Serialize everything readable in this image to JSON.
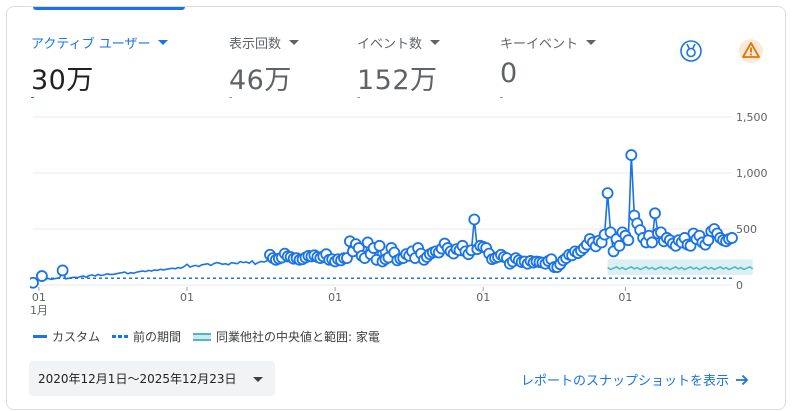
{
  "metrics": [
    {
      "label": "アクティブ ユーザー",
      "value": "30万",
      "active": true
    },
    {
      "label": "表示回数",
      "value": "46万",
      "active": false
    },
    {
      "label": "イベント数",
      "value": "152万",
      "active": false
    },
    {
      "label": "キーイベント",
      "value": "0",
      "active": false
    }
  ],
  "icons": {
    "insights": "insights-badge-icon",
    "warning": "warning-triangle-icon"
  },
  "colors": {
    "accent": "#1a73e8",
    "band": "#cde8ee",
    "median": "#4db6c4",
    "warning": "#e37400"
  },
  "chart_data": {
    "type": "line",
    "ylim": [
      0,
      1500
    ],
    "yticks": [
      0,
      500,
      1000,
      1500
    ],
    "ytick_labels": [
      "0",
      "500",
      "1,000",
      "1,500"
    ],
    "xtick_labels": [
      [
        "01",
        "1月"
      ],
      [
        "01"
      ],
      [
        "01"
      ],
      [
        "01"
      ],
      [
        "01"
      ]
    ],
    "xtick_index": [
      2,
      52,
      102,
      152,
      200
    ],
    "series": [
      {
        "name": "カスタム",
        "style": "solid",
        "values": [
          20,
          55,
          60,
          80,
          45,
          60,
          50,
          55,
          60,
          65,
          130,
          55,
          60,
          65,
          70,
          65,
          75,
          80,
          70,
          85,
          90,
          80,
          95,
          85,
          90,
          100,
          95,
          95,
          100,
          105,
          110,
          115,
          100,
          110,
          105,
          115,
          120,
          125,
          120,
          130,
          125,
          135,
          130,
          140,
          135,
          140,
          145,
          150,
          145,
          155,
          150,
          165,
          185,
          160,
          170,
          175,
          165,
          180,
          185,
          190,
          175,
          190,
          200,
          195,
          185,
          190,
          180,
          200,
          195,
          190,
          210,
          200,
          205,
          195,
          215,
          185,
          200,
          210,
          205,
          215,
          270,
          240,
          225,
          235,
          245,
          280,
          255,
          250,
          235,
          240,
          225,
          230,
          245,
          260,
          255,
          265,
          250,
          240,
          255,
          275,
          225,
          230,
          210,
          230,
          220,
          240,
          240,
          390,
          300,
          365,
          330,
          260,
          240,
          380,
          275,
          330,
          225,
          350,
          210,
          230,
          245,
          330,
          290,
          220,
          235,
          240,
          275,
          260,
          300,
          240,
          330,
          280,
          225,
          250,
          275,
          290,
          300,
          290,
          325,
          370,
          330,
          300,
          280,
          320,
          310,
          350,
          300,
          275,
          310,
          585,
          320,
          350,
          340,
          330,
          280,
          230,
          240,
          250,
          270,
          250,
          240,
          190,
          210,
          240,
          220,
          205,
          210,
          190,
          215,
          200,
          210,
          205,
          200,
          190,
          215,
          230,
          160,
          160,
          185,
          220,
          240,
          270,
          265,
          300,
          285,
          305,
          330,
          360,
          410,
          380,
          345,
          395,
          380,
          450,
          820,
          470,
          300,
          410,
          350,
          470,
          440,
          400,
          1160,
          620,
          550,
          490,
          420,
          380,
          440,
          380,
          640,
          460,
          470,
          390,
          420,
          400,
          370,
          350,
          400,
          380,
          420,
          360,
          350,
          460,
          410,
          440,
          380,
          360,
          400,
          480,
          500,
          460,
          420,
          400,
          390,
          410,
          420
        ],
        "markers_from": 80
      },
      {
        "name": "前の期間",
        "style": "dashed",
        "values": [
          60
        ]
      },
      {
        "name": "同業他社の中央値と範囲: 家電",
        "style": "band",
        "x_range": [
          194,
          243
        ],
        "low": 90,
        "high": 230,
        "median": 150
      }
    ]
  },
  "legend": [
    {
      "label": "カスタム",
      "type": "solid"
    },
    {
      "label": "前の期間",
      "type": "dashed"
    },
    {
      "label": "同業他社の中央値と範囲: 家電",
      "type": "band"
    }
  ],
  "date_range": "2020年12月1日〜2025年12月23日",
  "snapshot_link": "レポートのスナップショットを表示"
}
